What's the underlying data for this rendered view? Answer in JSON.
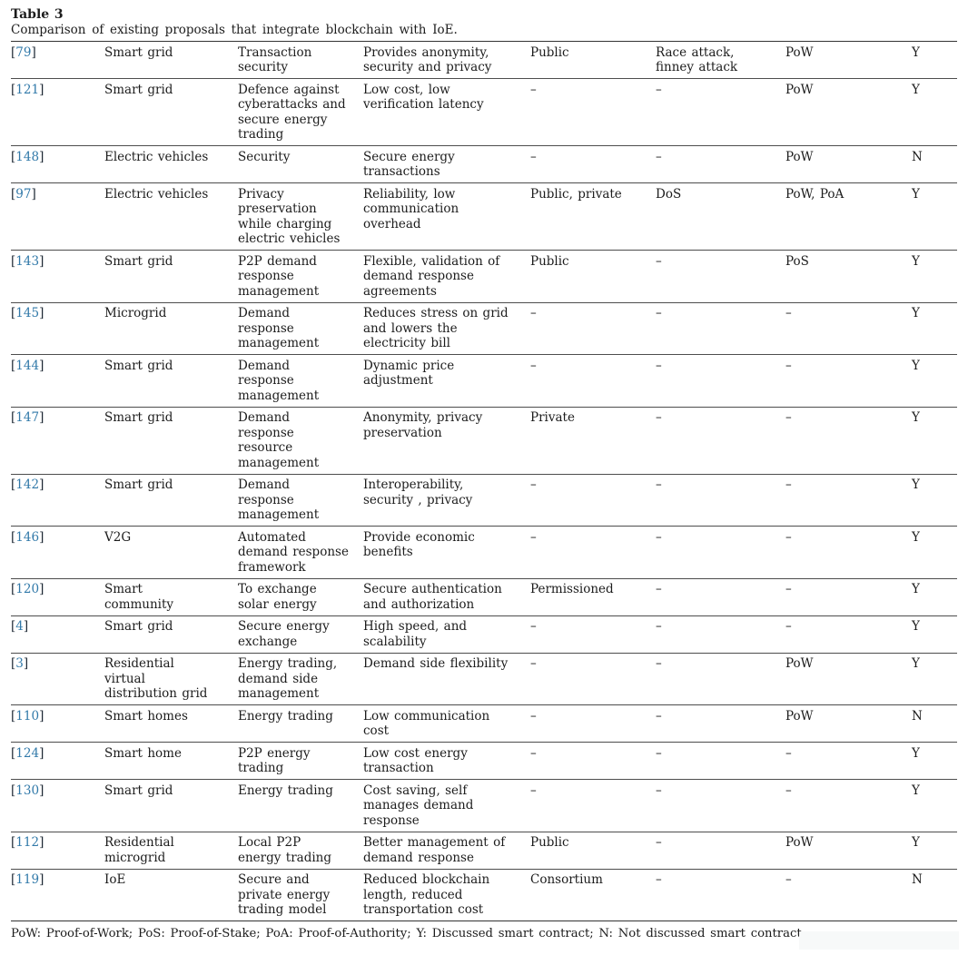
{
  "colors": {
    "ref_accent": "#3179a9",
    "text": "#1c1c1c",
    "rule_outer": "#333333",
    "rule_inner": "#4d4d4d",
    "artifact_fill": "#f7f9f9"
  },
  "caption": {
    "label": "Table 3",
    "description": "Comparison of existing proposals that integrate blockchain with IoE."
  },
  "table": {
    "ref_open": "[",
    "ref_close": "]",
    "rows": [
      {
        "ref": "79",
        "cells": [
          "Smart grid",
          "Transaction\nsecurity",
          "Provides anonymity,\nsecurity and privacy",
          "Public",
          "Race attack,\nfinney attack",
          "PoW",
          "Y"
        ]
      },
      {
        "ref": "121",
        "cells": [
          "Smart grid",
          "Defence against\ncyberattacks and\nsecure energy\ntrading",
          "Low cost, low\nverification latency",
          "–",
          "–",
          "PoW",
          "Y"
        ]
      },
      {
        "ref": "148",
        "cells": [
          "Electric vehicles",
          "Security",
          "Secure energy\ntransactions",
          "–",
          "–",
          "PoW",
          "N"
        ]
      },
      {
        "ref": "97",
        "cells": [
          "Electric vehicles",
          "Privacy\npreservation\nwhile charging\nelectric vehicles",
          "Reliability, low\ncommunication\noverhead",
          "Public, private",
          "DoS",
          "PoW, PoA",
          "Y"
        ]
      },
      {
        "ref": "143",
        "cells": [
          "Smart grid",
          "P2P demand\nresponse\nmanagement",
          "Flexible, validation of\ndemand response\nagreements",
          "Public",
          "–",
          "PoS",
          "Y"
        ]
      },
      {
        "ref": "145",
        "cells": [
          "Microgrid",
          "Demand\nresponse\nmanagement",
          "Reduces stress on grid\nand lowers the\nelectricity bill",
          "–",
          "–",
          "–",
          "Y"
        ]
      },
      {
        "ref": "144",
        "cells": [
          "Smart grid",
          "Demand\nresponse\nmanagement",
          "Dynamic price\nadjustment",
          "–",
          "–",
          "–",
          "Y"
        ]
      },
      {
        "ref": "147",
        "cells": [
          "Smart grid",
          "Demand\nresponse\nresource\nmanagement",
          "Anonymity, privacy\npreservation",
          "Private",
          "–",
          "–",
          "Y"
        ]
      },
      {
        "ref": "142",
        "cells": [
          "Smart grid",
          "Demand\nresponse\nmanagement",
          "Interoperability,\nsecurity , privacy",
          "–",
          "–",
          "–",
          "Y"
        ]
      },
      {
        "ref": "146",
        "cells": [
          "V2G",
          "Automated\ndemand response\nframework",
          "Provide economic\nbenefits",
          "–",
          "–",
          "–",
          "Y"
        ]
      },
      {
        "ref": "120",
        "cells": [
          "Smart\ncommunity",
          "To exchange\nsolar energy",
          "Secure authentication\nand authorization",
          "Permissioned",
          "–",
          "–",
          "Y"
        ]
      },
      {
        "ref": "4",
        "cells": [
          "Smart grid",
          "Secure energy\nexchange",
          "High speed, and\nscalability",
          "–",
          "–",
          "–",
          "Y"
        ]
      },
      {
        "ref": "3",
        "cells": [
          "Residential\nvirtual\ndistribution grid",
          "Energy trading,\ndemand side\nmanagement",
          "Demand side flexibility",
          "–",
          "–",
          "PoW",
          "Y"
        ]
      },
      {
        "ref": "110",
        "cells": [
          "Smart homes",
          "Energy trading",
          "Low communication\ncost",
          "–",
          "–",
          "PoW",
          "N"
        ]
      },
      {
        "ref": "124",
        "cells": [
          "Smart home",
          "P2P energy\ntrading",
          "Low cost energy\ntransaction",
          "–",
          "–",
          "–",
          "Y"
        ]
      },
      {
        "ref": "130",
        "cells": [
          "Smart grid",
          "Energy trading",
          "Cost saving, self\nmanages demand\nresponse",
          "–",
          "–",
          "–",
          "Y"
        ]
      },
      {
        "ref": "112",
        "cells": [
          "Residential\nmicrogrid",
          "Local P2P\nenergy trading",
          "Better management of\ndemand response",
          "Public",
          "–",
          "PoW",
          "Y"
        ]
      },
      {
        "ref": "119",
        "cells": [
          "IoE",
          "Secure and\nprivate energy\ntrading model",
          "Reduced blockchain\nlength, reduced\ntransportation cost",
          "Consortium",
          "–",
          "–",
          "N"
        ]
      }
    ]
  },
  "footnote": "PoW: Proof-of-Work; PoS: Proof-of-Stake; PoA: Proof-of-Authority; Y: Discussed smart contract; N: Not discussed smart contract."
}
